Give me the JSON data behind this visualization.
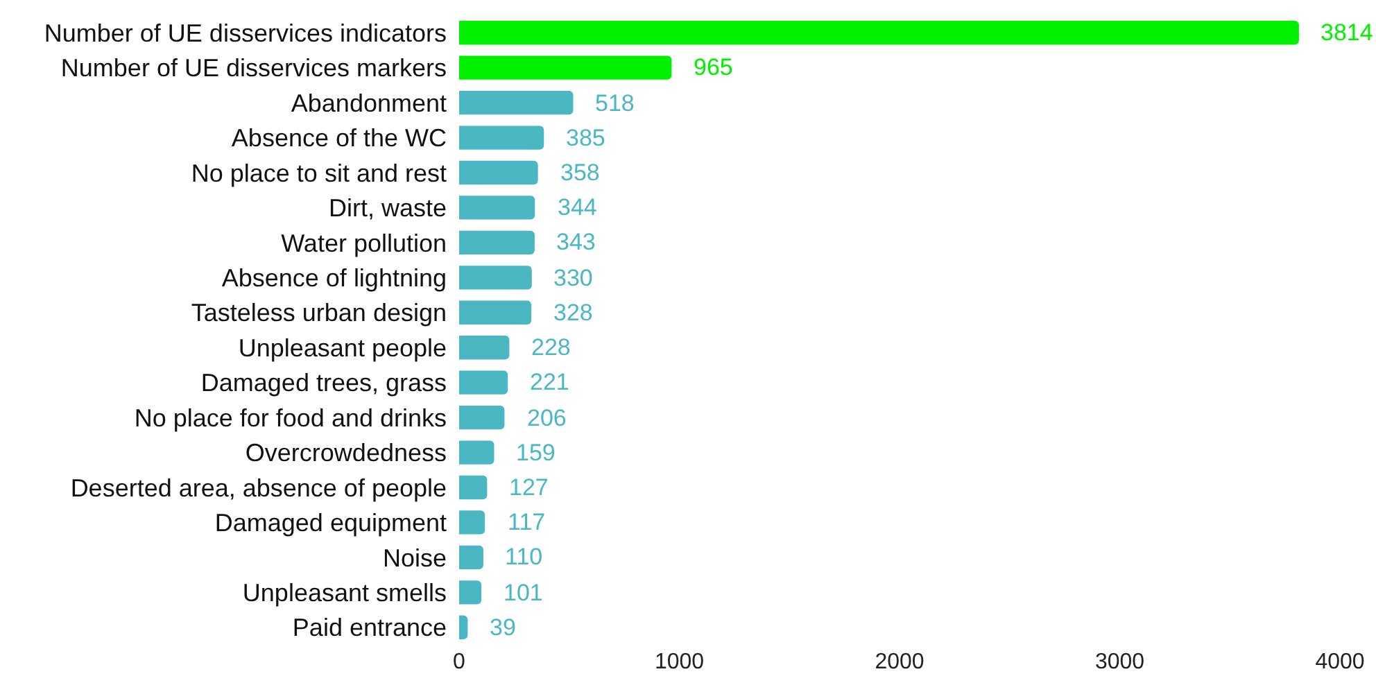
{
  "chart_data": {
    "type": "bar",
    "orientation": "horizontal",
    "categories": [
      "Number of UE disservices indicators",
      "Number of UE disservices markers",
      "Abandonment",
      "Absence of the WC",
      "No place to sit and rest",
      "Dirt, waste",
      "Water pollution",
      "Absence of lightning",
      "Tasteless urban design",
      "Unpleasant people",
      "Damaged trees, grass",
      "No place for food and drinks",
      "Overcrowdedness",
      "Deserted area, absence of people",
      "Damaged equipment",
      "Noise",
      "Unpleasant smells",
      "Paid entrance"
    ],
    "values": [
      3814,
      965,
      518,
      385,
      358,
      344,
      343,
      330,
      328,
      228,
      221,
      206,
      159,
      127,
      117,
      110,
      101,
      39
    ],
    "colors": [
      "#00f000",
      "#00f000",
      "#4ab7c3",
      "#4ab7c3",
      "#4ab7c3",
      "#4ab7c3",
      "#4ab7c3",
      "#4ab7c3",
      "#4ab7c3",
      "#4ab7c3",
      "#4ab7c3",
      "#4ab7c3",
      "#4ab7c3",
      "#4ab7c3",
      "#4ab7c3",
      "#4ab7c3",
      "#4ab7c3",
      "#4ab7c3"
    ],
    "xlim": [
      0,
      4000
    ],
    "xticks": [
      0,
      1000,
      2000,
      3000,
      4000
    ],
    "data_labels": true,
    "grid": false
  }
}
